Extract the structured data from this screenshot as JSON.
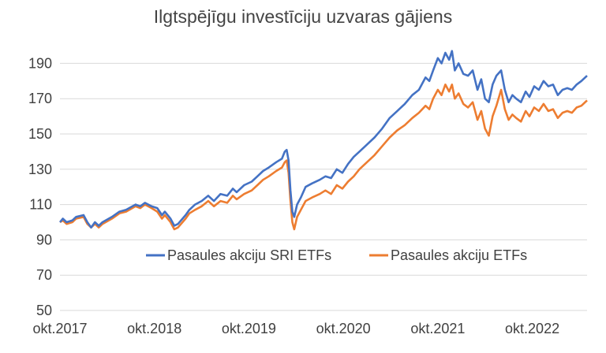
{
  "chart_data": {
    "type": "line",
    "title": "Ilgtspējīgu investīciju uzvaras gājiens",
    "xlabel": "",
    "ylabel": "",
    "ylim": [
      50,
      200
    ],
    "y_ticks": [
      50,
      70,
      90,
      110,
      130,
      150,
      170,
      190
    ],
    "x_tick_labels": [
      "okt.2017",
      "okt.2018",
      "okt.2019",
      "okt.2020",
      "okt.2021",
      "okt.2022"
    ],
    "x_range": [
      2017.75,
      2023.33
    ],
    "grid": "horizontal",
    "legend_position": "inside-lower-center",
    "series": [
      {
        "name": "Pasaules akciju SRI ETFs",
        "color": "#4472C4",
        "points": [
          [
            2017.75,
            100
          ],
          [
            2017.78,
            102
          ],
          [
            2017.82,
            100
          ],
          [
            2017.88,
            101
          ],
          [
            2017.92,
            103
          ],
          [
            2018.0,
            104
          ],
          [
            2018.04,
            100
          ],
          [
            2018.08,
            97
          ],
          [
            2018.12,
            100
          ],
          [
            2018.16,
            98
          ],
          [
            2018.2,
            100
          ],
          [
            2018.3,
            103
          ],
          [
            2018.38,
            106
          ],
          [
            2018.45,
            107
          ],
          [
            2018.55,
            110
          ],
          [
            2018.6,
            109
          ],
          [
            2018.65,
            111
          ],
          [
            2018.72,
            109
          ],
          [
            2018.78,
            108
          ],
          [
            2018.83,
            104
          ],
          [
            2018.86,
            106
          ],
          [
            2018.92,
            102
          ],
          [
            2018.96,
            98
          ],
          [
            2019.0,
            99
          ],
          [
            2019.08,
            104
          ],
          [
            2019.12,
            107
          ],
          [
            2019.18,
            110
          ],
          [
            2019.25,
            112
          ],
          [
            2019.32,
            115
          ],
          [
            2019.38,
            112
          ],
          [
            2019.45,
            116
          ],
          [
            2019.52,
            115
          ],
          [
            2019.58,
            119
          ],
          [
            2019.62,
            117
          ],
          [
            2019.7,
            121
          ],
          [
            2019.78,
            123
          ],
          [
            2019.84,
            126
          ],
          [
            2019.9,
            129
          ],
          [
            2019.96,
            131
          ],
          [
            2020.04,
            134
          ],
          [
            2020.1,
            136
          ],
          [
            2020.13,
            140
          ],
          [
            2020.15,
            141
          ],
          [
            2020.17,
            135
          ],
          [
            2020.19,
            118
          ],
          [
            2020.21,
            106
          ],
          [
            2020.23,
            103
          ],
          [
            2020.26,
            110
          ],
          [
            2020.3,
            114
          ],
          [
            2020.35,
            120
          ],
          [
            2020.42,
            122
          ],
          [
            2020.5,
            124
          ],
          [
            2020.56,
            126
          ],
          [
            2020.62,
            125
          ],
          [
            2020.68,
            130
          ],
          [
            2020.74,
            128
          ],
          [
            2020.8,
            133
          ],
          [
            2020.86,
            137
          ],
          [
            2020.92,
            140
          ],
          [
            2021.0,
            144
          ],
          [
            2021.08,
            148
          ],
          [
            2021.16,
            153
          ],
          [
            2021.24,
            159
          ],
          [
            2021.32,
            163
          ],
          [
            2021.4,
            167
          ],
          [
            2021.48,
            172
          ],
          [
            2021.55,
            175
          ],
          [
            2021.62,
            182
          ],
          [
            2021.66,
            180
          ],
          [
            2021.7,
            186
          ],
          [
            2021.75,
            193
          ],
          [
            2021.79,
            190
          ],
          [
            2021.83,
            196
          ],
          [
            2021.87,
            192
          ],
          [
            2021.9,
            197
          ],
          [
            2021.93,
            186
          ],
          [
            2021.97,
            190
          ],
          [
            2022.02,
            184
          ],
          [
            2022.07,
            183
          ],
          [
            2022.12,
            186
          ],
          [
            2022.17,
            175
          ],
          [
            2022.21,
            181
          ],
          [
            2022.25,
            170
          ],
          [
            2022.29,
            168
          ],
          [
            2022.33,
            178
          ],
          [
            2022.37,
            183
          ],
          [
            2022.42,
            186
          ],
          [
            2022.46,
            175
          ],
          [
            2022.5,
            168
          ],
          [
            2022.54,
            172
          ],
          [
            2022.58,
            170
          ],
          [
            2022.63,
            168
          ],
          [
            2022.68,
            174
          ],
          [
            2022.72,
            171
          ],
          [
            2022.77,
            177
          ],
          [
            2022.82,
            175
          ],
          [
            2022.87,
            180
          ],
          [
            2022.92,
            177
          ],
          [
            2022.97,
            178
          ],
          [
            2023.02,
            172
          ],
          [
            2023.07,
            175
          ],
          [
            2023.12,
            176
          ],
          [
            2023.17,
            175
          ],
          [
            2023.22,
            178
          ],
          [
            2023.27,
            180
          ],
          [
            2023.33,
            183
          ]
        ]
      },
      {
        "name": "Pasaules akciju ETFs",
        "color": "#ED7D31",
        "points": [
          [
            2017.75,
            100
          ],
          [
            2017.78,
            101
          ],
          [
            2017.82,
            99
          ],
          [
            2017.88,
            100
          ],
          [
            2017.92,
            102
          ],
          [
            2018.0,
            103
          ],
          [
            2018.04,
            99
          ],
          [
            2018.08,
            97
          ],
          [
            2018.12,
            99
          ],
          [
            2018.16,
            97
          ],
          [
            2018.2,
            99
          ],
          [
            2018.3,
            102
          ],
          [
            2018.38,
            105
          ],
          [
            2018.45,
            106
          ],
          [
            2018.55,
            109
          ],
          [
            2018.6,
            108
          ],
          [
            2018.65,
            110
          ],
          [
            2018.72,
            108
          ],
          [
            2018.78,
            106
          ],
          [
            2018.83,
            102
          ],
          [
            2018.86,
            104
          ],
          [
            2018.92,
            100
          ],
          [
            2018.96,
            96
          ],
          [
            2019.0,
            97
          ],
          [
            2019.08,
            102
          ],
          [
            2019.12,
            105
          ],
          [
            2019.18,
            107
          ],
          [
            2019.25,
            109
          ],
          [
            2019.32,
            112
          ],
          [
            2019.38,
            109
          ],
          [
            2019.45,
            112
          ],
          [
            2019.52,
            111
          ],
          [
            2019.58,
            115
          ],
          [
            2019.62,
            113
          ],
          [
            2019.7,
            116
          ],
          [
            2019.78,
            118
          ],
          [
            2019.84,
            121
          ],
          [
            2019.9,
            124
          ],
          [
            2019.96,
            126
          ],
          [
            2020.04,
            129
          ],
          [
            2020.1,
            131
          ],
          [
            2020.13,
            134
          ],
          [
            2020.15,
            135
          ],
          [
            2020.17,
            128
          ],
          [
            2020.19,
            112
          ],
          [
            2020.21,
            100
          ],
          [
            2020.23,
            96
          ],
          [
            2020.26,
            103
          ],
          [
            2020.3,
            107
          ],
          [
            2020.35,
            112
          ],
          [
            2020.42,
            114
          ],
          [
            2020.5,
            116
          ],
          [
            2020.56,
            118
          ],
          [
            2020.62,
            116
          ],
          [
            2020.68,
            121
          ],
          [
            2020.74,
            119
          ],
          [
            2020.8,
            123
          ],
          [
            2020.86,
            126
          ],
          [
            2020.92,
            130
          ],
          [
            2021.0,
            134
          ],
          [
            2021.08,
            138
          ],
          [
            2021.16,
            143
          ],
          [
            2021.24,
            148
          ],
          [
            2021.32,
            152
          ],
          [
            2021.4,
            155
          ],
          [
            2021.48,
            159
          ],
          [
            2021.55,
            162
          ],
          [
            2021.62,
            166
          ],
          [
            2021.66,
            164
          ],
          [
            2021.7,
            170
          ],
          [
            2021.75,
            175
          ],
          [
            2021.79,
            172
          ],
          [
            2021.83,
            178
          ],
          [
            2021.87,
            174
          ],
          [
            2021.9,
            178
          ],
          [
            2021.93,
            170
          ],
          [
            2021.97,
            173
          ],
          [
            2022.02,
            167
          ],
          [
            2022.07,
            165
          ],
          [
            2022.12,
            168
          ],
          [
            2022.17,
            158
          ],
          [
            2022.21,
            163
          ],
          [
            2022.25,
            153
          ],
          [
            2022.29,
            149
          ],
          [
            2022.33,
            160
          ],
          [
            2022.37,
            166
          ],
          [
            2022.42,
            175
          ],
          [
            2022.46,
            164
          ],
          [
            2022.5,
            158
          ],
          [
            2022.54,
            161
          ],
          [
            2022.58,
            159
          ],
          [
            2022.63,
            157
          ],
          [
            2022.68,
            163
          ],
          [
            2022.72,
            160
          ],
          [
            2022.77,
            165
          ],
          [
            2022.82,
            163
          ],
          [
            2022.87,
            167
          ],
          [
            2022.92,
            163
          ],
          [
            2022.97,
            164
          ],
          [
            2023.02,
            159
          ],
          [
            2023.07,
            162
          ],
          [
            2023.12,
            163
          ],
          [
            2023.17,
            162
          ],
          [
            2023.22,
            165
          ],
          [
            2023.27,
            166
          ],
          [
            2023.33,
            169
          ]
        ]
      }
    ]
  }
}
